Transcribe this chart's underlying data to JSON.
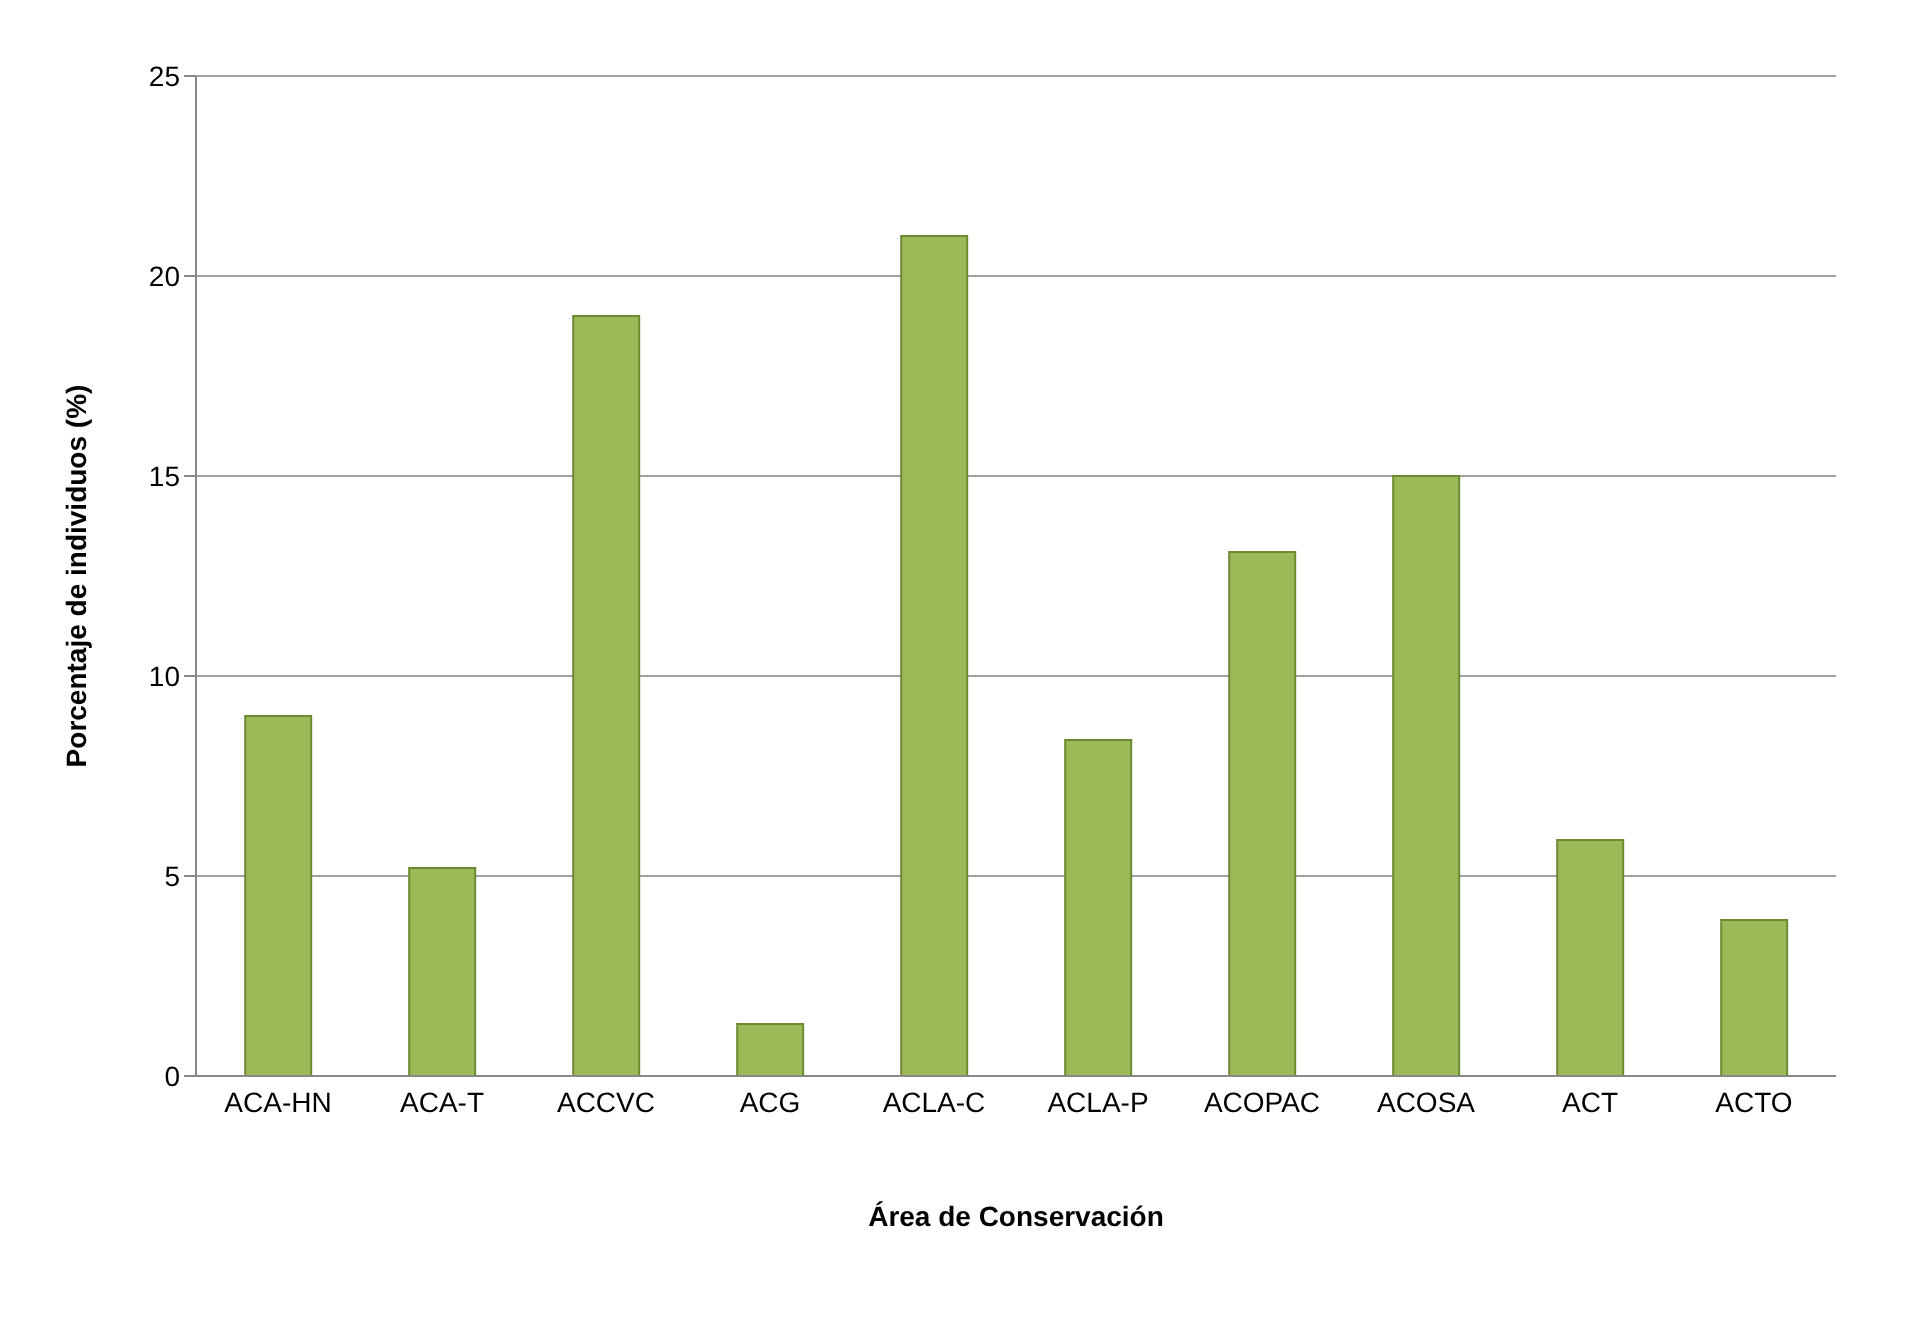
{
  "chart_data": {
    "type": "bar",
    "xlabel": "Área de Conservación",
    "ylabel": "Porcentaje de individuos (%)",
    "categories": [
      "ACA-HN",
      "ACA-T",
      "ACCVC",
      "ACG",
      "ACLA-C",
      "ACLA-P",
      "ACOPAC",
      "ACOSA",
      "ACT",
      "ACTO"
    ],
    "values": [
      9,
      5.2,
      19,
      1.3,
      21,
      8.4,
      13.1,
      15,
      5.9,
      3.9
    ],
    "color": "#9bbb59",
    "ylim": [
      0,
      25
    ],
    "yticks": [
      0,
      5,
      10,
      15,
      20,
      25
    ],
    "grid": "y"
  }
}
